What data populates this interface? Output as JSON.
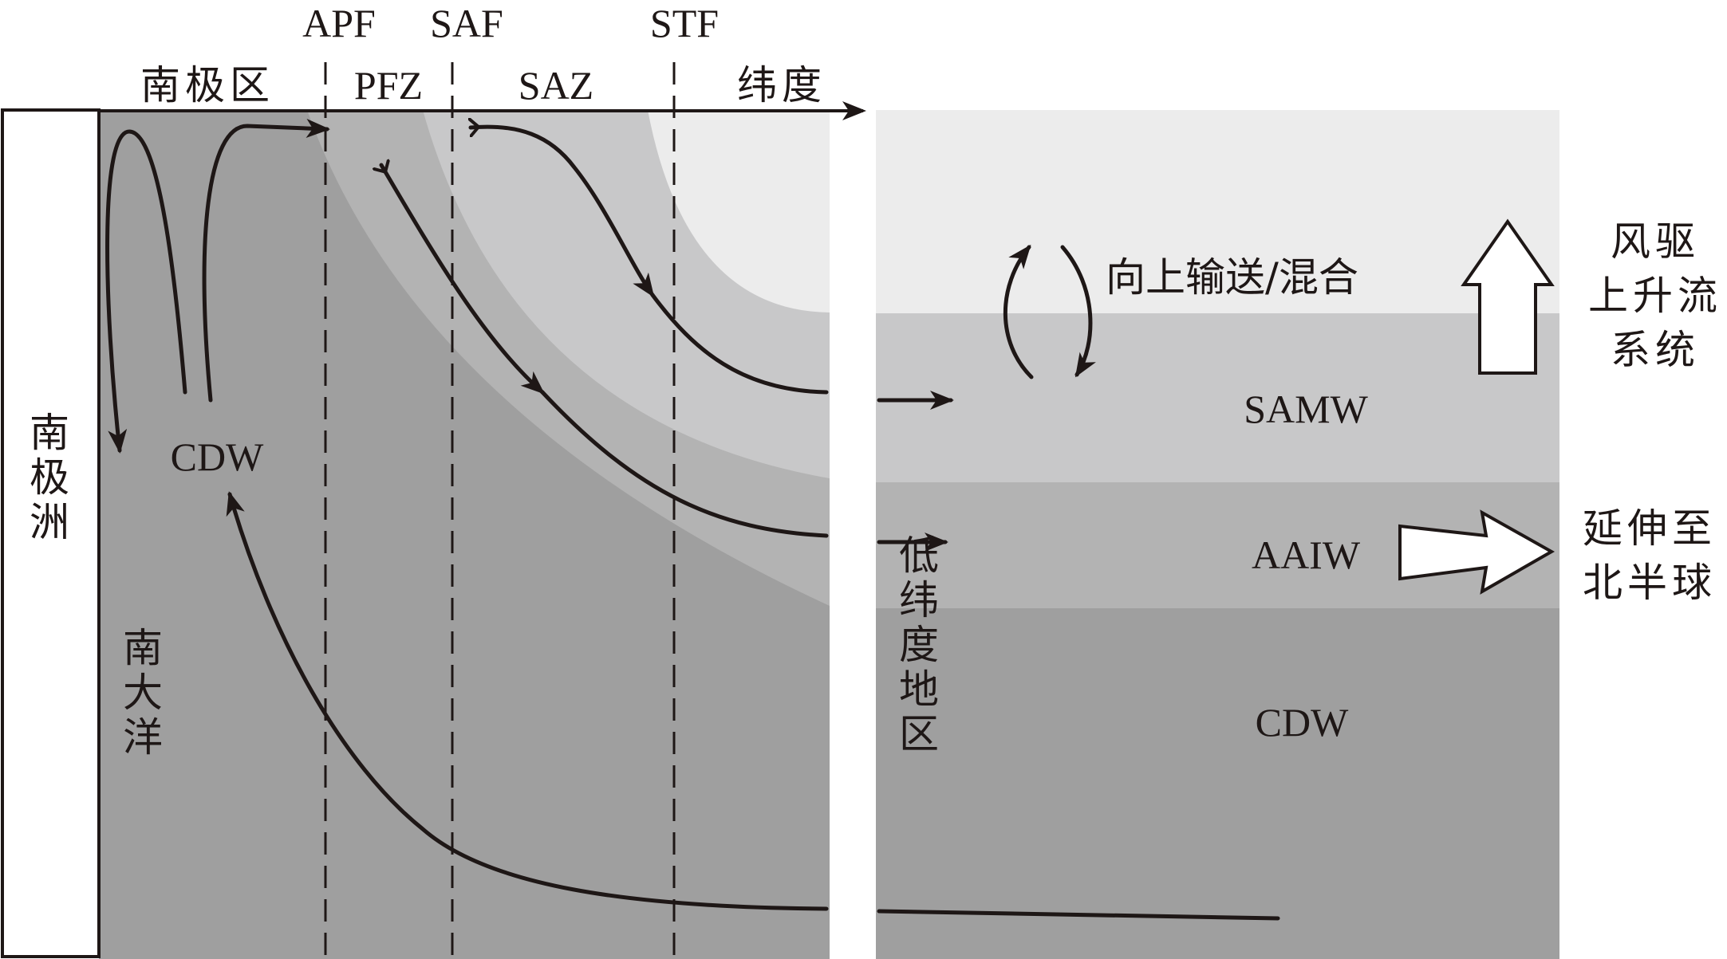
{
  "fronts": [
    "APF",
    "SAF",
    "STF"
  ],
  "zones": {
    "antarctic": "南极区",
    "pfz": "PFZ",
    "saz": "SAZ"
  },
  "latitude": "纬度",
  "continent": "南极洲",
  "southern_ocean": "南大洋",
  "low_latitude": "低纬度地区",
  "water_masses": {
    "cdw_left": "CDW",
    "samw": "SAMW",
    "aaiw": "AAIW",
    "cdw_right": "CDW"
  },
  "mixing": "向上输送/混合",
  "upwelling_system": [
    "风驱",
    "上升流",
    "系统"
  ],
  "extend_north": [
    "延伸至",
    "北半球"
  ],
  "colors": {
    "cdw": "#9f9f9f",
    "aaiw": "#b3b3b3",
    "samw": "#c8c8c9",
    "surface": "#ececec",
    "ink": "#1e1716"
  }
}
